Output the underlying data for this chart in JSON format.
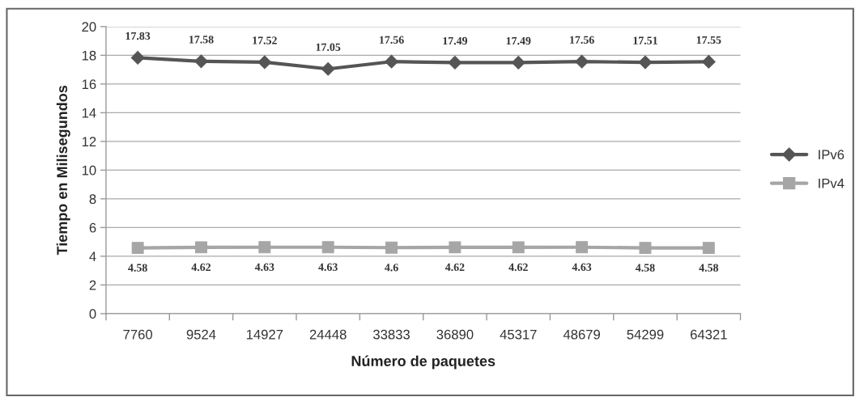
{
  "chart_data": {
    "type": "line",
    "xlabel": "Número de paquetes",
    "ylabel": "Tiempo en Milisegundos",
    "categories": [
      "7760",
      "9524",
      "14927",
      "24448",
      "33833",
      "36890",
      "45317",
      "48679",
      "54299",
      "64321"
    ],
    "series": [
      {
        "name": "IPv6",
        "color": "#555555",
        "marker": "diamond",
        "values": [
          17.83,
          17.58,
          17.52,
          17.05,
          17.56,
          17.49,
          17.49,
          17.56,
          17.51,
          17.55
        ]
      },
      {
        "name": "IPv4",
        "color": "#a6a6a6",
        "marker": "square",
        "values": [
          4.58,
          4.62,
          4.63,
          4.63,
          4.6,
          4.62,
          4.62,
          4.63,
          4.58,
          4.58
        ]
      }
    ],
    "ylim": [
      0,
      20
    ],
    "yticks": [
      0,
      2,
      4,
      6,
      8,
      10,
      12,
      14,
      16,
      18,
      20
    ],
    "grid": "y",
    "legend": "right",
    "data_labels": true,
    "line_style": "solid"
  }
}
